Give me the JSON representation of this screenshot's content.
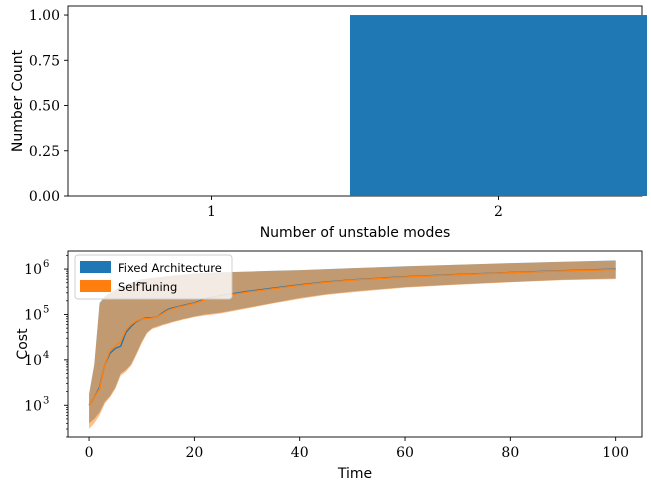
{
  "chart_data": [
    {
      "type": "bar",
      "categories": [
        "1",
        "2"
      ],
      "values": [
        0,
        1
      ],
      "xlabel": "Number of unstable modes",
      "ylabel": "Number Count",
      "ylim": [
        0,
        1.05
      ],
      "yticks": [
        "0.00",
        "0.25",
        "0.50",
        "0.75",
        "1.00"
      ],
      "bar_color": "#1f77b4"
    },
    {
      "type": "line",
      "xlabel": "Time",
      "ylabel": "Cost",
      "yscale": "log",
      "xlim": [
        -4,
        105
      ],
      "ylim": [
        200,
        2500000
      ],
      "xticks": [
        "0",
        "20",
        "40",
        "60",
        "80",
        "100"
      ],
      "ytick_exponents": [
        3,
        4,
        5,
        6
      ],
      "legend_position": "top-left",
      "x": [
        0,
        1,
        2,
        3,
        4,
        5,
        6,
        7,
        8,
        9,
        10,
        11,
        12,
        13,
        14,
        15,
        16,
        17,
        18,
        19,
        20,
        22,
        25,
        30,
        35,
        40,
        45,
        50,
        60,
        70,
        80,
        90,
        100
      ],
      "series": [
        {
          "name": "Fixed Architecture",
          "color": "#1f77b4",
          "values": [
            1000,
            1500,
            2500,
            8000,
            14000,
            18000,
            20000,
            40000,
            55000,
            70000,
            80000,
            85000,
            85000,
            90000,
            110000,
            130000,
            140000,
            150000,
            160000,
            170000,
            180000,
            220000,
            260000,
            320000,
            380000,
            450000,
            520000,
            580000,
            680000,
            760000,
            840000,
            920000,
            1000000
          ],
          "lower": [
            400,
            500,
            700,
            1200,
            1600,
            2500,
            5000,
            6000,
            8000,
            14000,
            25000,
            40000,
            50000,
            55000,
            60000,
            65000,
            70000,
            75000,
            80000,
            85000,
            90000,
            100000,
            110000,
            140000,
            180000,
            230000,
            280000,
            320000,
            400000,
            460000,
            520000,
            580000,
            620000
          ],
          "upper": [
            1800,
            8000,
            180000,
            250000,
            300000,
            350000,
            420000,
            450000,
            500000,
            560000,
            600000,
            620000,
            640000,
            660000,
            680000,
            700000,
            720000,
            740000,
            760000,
            780000,
            800000,
            820000,
            850000,
            880000,
            920000,
            950000,
            1000000,
            1050000,
            1150000,
            1250000,
            1350000,
            1450000,
            1550000
          ]
        },
        {
          "name": "SelfTuning",
          "color": "#ff7f0e",
          "values": [
            1000,
            1500,
            2300,
            8000,
            16000,
            20000,
            25000,
            45000,
            60000,
            72000,
            80000,
            82000,
            84000,
            90000,
            105000,
            125000,
            135000,
            145000,
            155000,
            165000,
            175000,
            210000,
            250000,
            310000,
            370000,
            440000,
            510000,
            570000,
            670000,
            750000,
            830000,
            910000,
            980000
          ],
          "lower": [
            300,
            400,
            600,
            1100,
            1500,
            2300,
            4500,
            5500,
            7500,
            13000,
            23000,
            38000,
            48000,
            52000,
            58000,
            62000,
            68000,
            72000,
            78000,
            82000,
            88000,
            95000,
            105000,
            135000,
            175000,
            220000,
            270000,
            310000,
            390000,
            450000,
            510000,
            570000,
            600000
          ],
          "upper": [
            1700,
            7500,
            170000,
            240000,
            290000,
            340000,
            410000,
            440000,
            490000,
            550000,
            590000,
            610000,
            630000,
            650000,
            670000,
            690000,
            710000,
            730000,
            750000,
            770000,
            790000,
            810000,
            840000,
            870000,
            910000,
            940000,
            990000,
            1040000,
            1140000,
            1240000,
            1340000,
            1440000,
            1540000
          ]
        }
      ]
    }
  ]
}
